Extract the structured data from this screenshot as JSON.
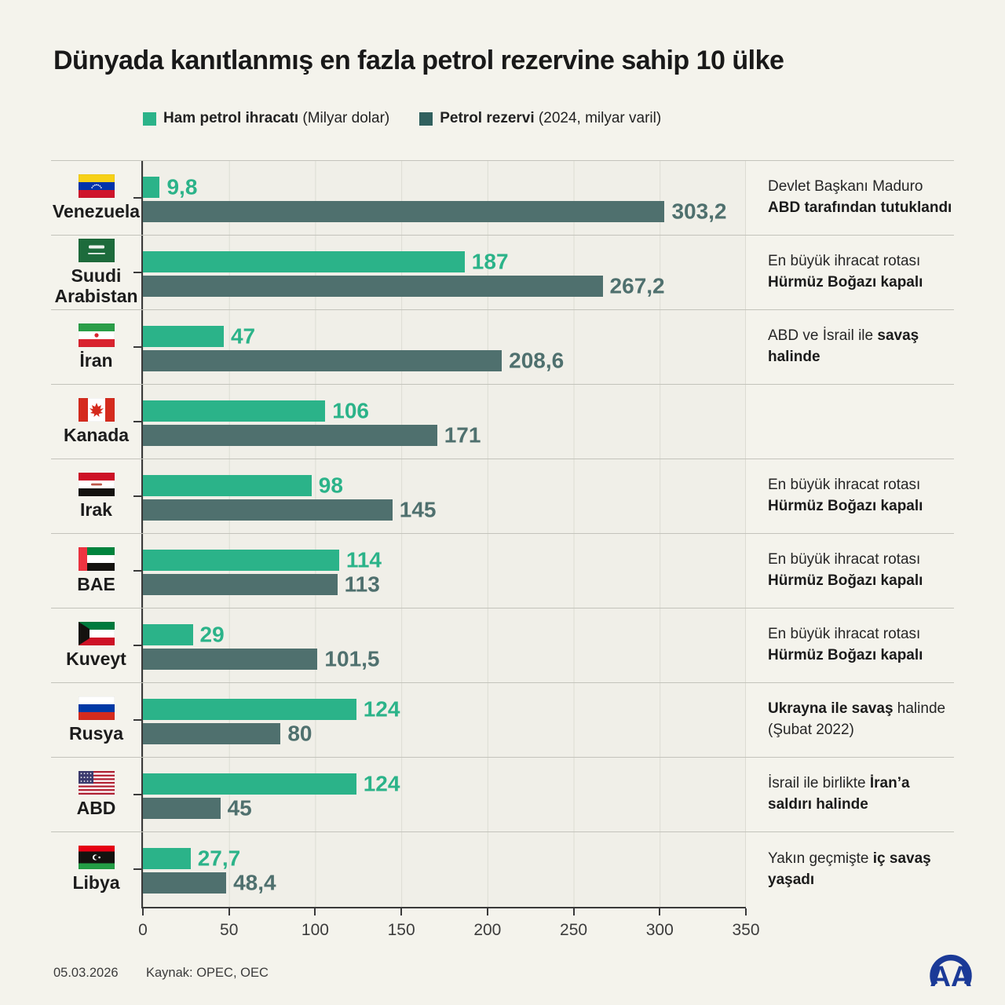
{
  "title": "Dünyada kanıtlanmış en fazla petrol rezervine sahip 10 ülke",
  "legend": [
    {
      "label_bold": "Ham petrol ihracatı",
      "label_rest": " (Milyar dolar)",
      "color": "#2bb389"
    },
    {
      "label_bold": "Petrol rezervi",
      "label_rest": " (2024, milyar varil)",
      "color": "#30605e"
    }
  ],
  "colors": {
    "export_bar": "#2bb389",
    "reserve_bar": "#4f706e",
    "export_label": "#2bb389",
    "reserve_label": "#4f706e",
    "logo_blue": "#1b3a97"
  },
  "chart_data": {
    "type": "bar",
    "orientation": "horizontal",
    "title": "Dünyada kanıtlanmış en fazla petrol rezervine sahip 10 ülke",
    "xlim": [
      0,
      350
    ],
    "x_ticks": [
      "0",
      "50",
      "100",
      "150",
      "200",
      "250",
      "300",
      "350"
    ],
    "grid": true,
    "categories": [
      "Venezuela",
      "Suudi Arabistan",
      "İran",
      "Kanada",
      "Irak",
      "BAE",
      "Kuveyt",
      "Rusya",
      "ABD",
      "Libya"
    ],
    "flags": [
      "venezuela-flag",
      "saudi-arabia-flag",
      "iran-flag",
      "canada-flag",
      "iraq-flag",
      "uae-flag",
      "kuwait-flag",
      "russia-flag",
      "usa-flag",
      "libya-flag"
    ],
    "series": [
      {
        "name": "Ham petrol ihracatı (Milyar dolar)",
        "values": [
          9.8,
          187,
          47,
          106,
          98,
          114,
          29,
          124,
          124,
          27.7
        ],
        "labels": [
          "9,8",
          "187",
          "47",
          "106",
          "98",
          "114",
          "29",
          "124",
          "124",
          "27,7"
        ]
      },
      {
        "name": "Petrol rezervi (2024, milyar varil)",
        "values": [
          303.2,
          267.2,
          208.6,
          171,
          145,
          113,
          101.5,
          80,
          45,
          48.4
        ],
        "labels": [
          "303,2",
          "267,2",
          "208,6",
          "171",
          "145",
          "113",
          "101,5",
          "80",
          "45",
          "48,4"
        ]
      }
    ],
    "annotations": [
      [
        {
          "text": "Devlet Başkanı Maduro ",
          "bold": false
        },
        {
          "text": "ABD tarafından tutuklandı",
          "bold": true
        }
      ],
      [
        {
          "text": "En büyük ihracat rotası ",
          "bold": false
        },
        {
          "text": "Hürmüz Boğazı kapalı",
          "bold": true
        }
      ],
      [
        {
          "text": "ABD ve İsrail ile ",
          "bold": false
        },
        {
          "text": "savaş halinde",
          "bold": true
        }
      ],
      [],
      [
        {
          "text": "En büyük ihracat rotası ",
          "bold": false
        },
        {
          "text": "Hürmüz Boğazı kapalı",
          "bold": true
        }
      ],
      [
        {
          "text": "En büyük ihracat rotası ",
          "bold": false
        },
        {
          "text": "Hürmüz Boğazı kapalı",
          "bold": true
        }
      ],
      [
        {
          "text": "En büyük ihracat rotası ",
          "bold": false
        },
        {
          "text": "Hürmüz Boğazı kapalı",
          "bold": true
        }
      ],
      [
        {
          "text": "Ukrayna ile savaş",
          "bold": true
        },
        {
          "text": " halinde (Şubat 2022)",
          "bold": false
        }
      ],
      [
        {
          "text": "İsrail ile birlikte ",
          "bold": false
        },
        {
          "text": "İran’a saldırı halinde",
          "bold": true
        }
      ],
      [
        {
          "text": "Yakın geçmişte ",
          "bold": false
        },
        {
          "text": "iç savaş yaşadı",
          "bold": true
        }
      ]
    ]
  },
  "footer": {
    "date": "05.03.2026",
    "source": "Kaynak: OPEC, OEC",
    "logo": "aa-agency-logo"
  }
}
